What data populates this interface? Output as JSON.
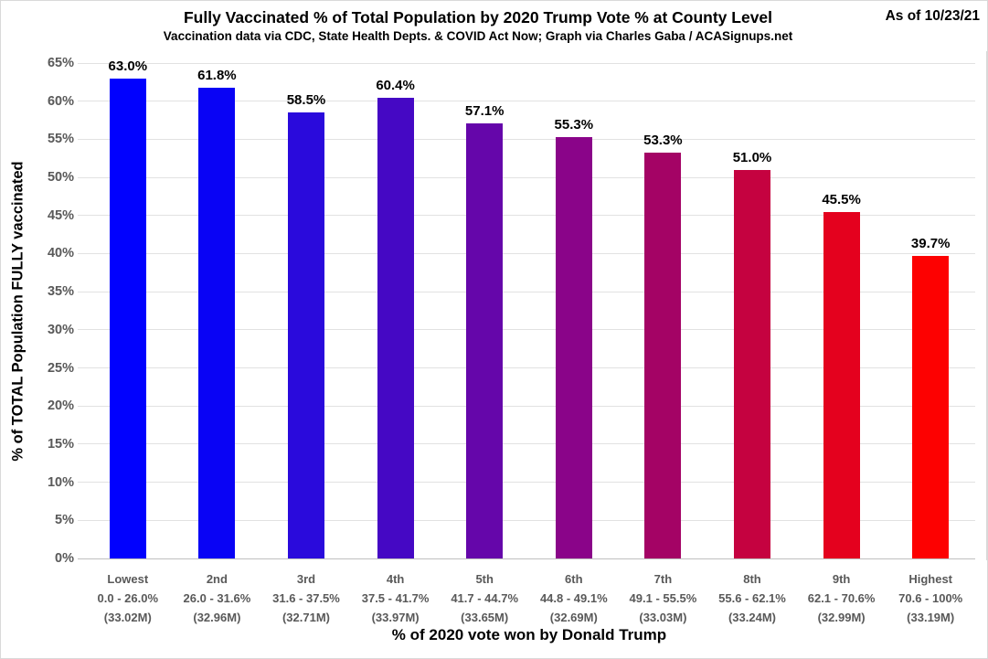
{
  "chart_data": {
    "type": "bar",
    "title": "Fully Vaccinated % of Total Population by 2020 Trump Vote % at County Level",
    "subtitle": "Vaccination data via CDC, State Health Depts. & COVID Act Now; Graph via Charles Gaba / ACASignups.net",
    "as_of": "As of 10/23/21",
    "xlabel": "% of 2020 vote won by Donald Trump",
    "ylabel": "% of TOTAL Population FULLY vaccinated",
    "ylim": [
      0,
      65
    ],
    "ytick_step": 5,
    "ytick_suffix": "%",
    "grid": true,
    "legend": "none",
    "categories": [
      {
        "tier": "Lowest",
        "trump_vote_range": "0.0 - 26.0%",
        "population": "(33.02M)"
      },
      {
        "tier": "2nd",
        "trump_vote_range": "26.0 - 31.6%",
        "population": "(32.96M)"
      },
      {
        "tier": "3rd",
        "trump_vote_range": "31.6 - 37.5%",
        "population": "(32.71M)"
      },
      {
        "tier": "4th",
        "trump_vote_range": "37.5 - 41.7%",
        "population": "(33.97M)"
      },
      {
        "tier": "5th",
        "trump_vote_range": "41.7 - 44.7%",
        "population": "(33.65M)"
      },
      {
        "tier": "6th",
        "trump_vote_range": "44.8 - 49.1%",
        "population": "(32.69M)"
      },
      {
        "tier": "7th",
        "trump_vote_range": "49.1 - 55.5%",
        "population": "(33.03M)"
      },
      {
        "tier": "8th",
        "trump_vote_range": "55.6 - 62.1%",
        "population": "(33.24M)"
      },
      {
        "tier": "9th",
        "trump_vote_range": "62.1 - 70.6%",
        "population": "(32.99M)"
      },
      {
        "tier": "Highest",
        "trump_vote_range": "70.6 - 100%",
        "population": "(33.19M)"
      }
    ],
    "values": [
      63.0,
      61.8,
      58.5,
      60.4,
      57.1,
      55.3,
      53.3,
      51.0,
      45.5,
      39.7
    ],
    "value_labels": [
      "63.0%",
      "61.8%",
      "58.5%",
      "60.4%",
      "57.1%",
      "55.3%",
      "53.3%",
      "51.0%",
      "45.5%",
      "39.7%"
    ],
    "bar_colors": [
      "#0101FE",
      "#0903F5",
      "#2A0ADC",
      "#4508C4",
      "#6506AA",
      "#8A0489",
      "#A40365",
      "#C50240",
      "#E4011E",
      "#FD0101"
    ],
    "colors": {
      "tick_text": "#595959",
      "gridline": "#e2e2e2",
      "baseline": "#bfbfbf",
      "frame_border": "#d9d9d9",
      "text": "#000000"
    }
  }
}
